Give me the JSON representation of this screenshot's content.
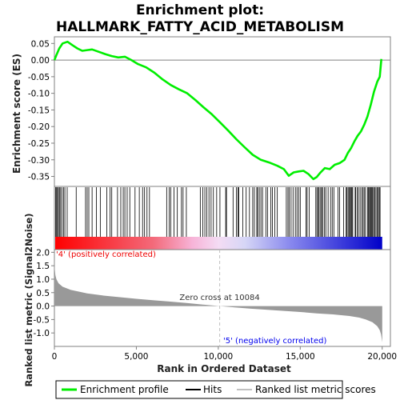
{
  "title_line1": "Enrichment plot:",
  "title_line2": "HALLMARK_FATTY_ACID_METABOLISM",
  "colors": {
    "es_line": "#00ee00",
    "hits": "#000000",
    "ranked_fill": "#999999",
    "positive_label": "#ee0000",
    "negative_label": "#0000ee",
    "zero_cross_line": "#c0c0c0"
  },
  "chart_data": [
    {
      "type": "line",
      "name": "enrichment-score-plot",
      "ylabel": "Enrichment score (ES)",
      "xlim": [
        0,
        20500
      ],
      "ylim": [
        -0.38,
        0.07
      ],
      "yticks": [
        0.05,
        0.0,
        -0.05,
        -0.1,
        -0.15,
        -0.2,
        -0.25,
        -0.3,
        -0.35
      ],
      "ytick_labels": [
        "0.05",
        "0.00",
        "-0.05",
        "-0.10",
        "-0.15",
        "-0.20",
        "-0.25",
        "-0.30",
        "-0.35"
      ],
      "series": [
        {
          "name": "Enrichment profile",
          "x": [
            0,
            120,
            300,
            500,
            800,
            1100,
            1400,
            1700,
            2000,
            2300,
            2700,
            3100,
            3500,
            3900,
            4300,
            4700,
            5100,
            5600,
            6100,
            6600,
            7100,
            7600,
            8100,
            8600,
            9100,
            9600,
            10100,
            10600,
            11100,
            11600,
            12100,
            12600,
            13100,
            13600,
            14000,
            14300,
            14600,
            14900,
            15200,
            15500,
            15800,
            16000,
            16200,
            16500,
            16800,
            17100,
            17400,
            17700,
            17900,
            18100,
            18300,
            18500,
            18700,
            18900,
            19100,
            19300,
            19500,
            19700,
            19850,
            19950
          ],
          "y": [
            0.0,
            0.015,
            0.035,
            0.05,
            0.055,
            0.045,
            0.035,
            0.028,
            0.03,
            0.032,
            0.025,
            0.018,
            0.012,
            0.008,
            0.01,
            0.0,
            -0.012,
            -0.022,
            -0.038,
            -0.058,
            -0.075,
            -0.088,
            -0.1,
            -0.12,
            -0.142,
            -0.163,
            -0.187,
            -0.212,
            -0.238,
            -0.262,
            -0.285,
            -0.3,
            -0.308,
            -0.318,
            -0.328,
            -0.348,
            -0.338,
            -0.335,
            -0.333,
            -0.343,
            -0.358,
            -0.352,
            -0.34,
            -0.325,
            -0.328,
            -0.315,
            -0.31,
            -0.3,
            -0.28,
            -0.265,
            -0.245,
            -0.228,
            -0.215,
            -0.195,
            -0.17,
            -0.135,
            -0.095,
            -0.065,
            -0.05,
            0.003
          ]
        }
      ]
    },
    {
      "type": "heatmap",
      "name": "hits-strip",
      "xlim": [
        0,
        20500
      ],
      "hit_positions": [
        70,
        130,
        190,
        240,
        310,
        380,
        460,
        560,
        640,
        780,
        1330,
        1900,
        2000,
        2100,
        2300,
        2560,
        2800,
        3200,
        3400,
        3500,
        3850,
        4050,
        4200,
        4300,
        4440,
        4600,
        4920,
        5180,
        5380,
        5500,
        5650,
        5800,
        6850,
        7000,
        7100,
        7300,
        7500,
        7750,
        7850,
        8050,
        8900,
        9050,
        9180,
        9300,
        9430,
        9560,
        9700,
        9900,
        10100,
        10450,
        10500,
        10900,
        11100,
        11200,
        11250,
        11500,
        11700,
        11900,
        12100,
        12200,
        12350,
        12400,
        12500,
        12600,
        12700,
        12900,
        13000,
        13200,
        13300,
        13450,
        13600,
        14150,
        14250,
        14320,
        14440,
        14560,
        14700,
        14800,
        14900,
        15000,
        15350,
        15420,
        15550,
        15950,
        16020,
        16100,
        16150,
        16250,
        16300,
        16380,
        16480,
        16560,
        16700,
        16850,
        16950,
        17050,
        17300,
        17400,
        17650,
        17800,
        17850,
        17920,
        17980,
        18050,
        18100,
        18150,
        18200,
        18350,
        18380,
        18470,
        18550,
        18650,
        18750,
        18830,
        18900,
        18980,
        19100,
        19160,
        19220,
        19270,
        19320,
        19370,
        19420,
        19480,
        19550,
        19620,
        19700,
        19760,
        19820,
        19870
      ]
    },
    {
      "type": "area",
      "name": "ranked-list-metric",
      "ylabel": "Ranked list metric (Signal2Noise)",
      "xlabel": "Rank in Ordered Dataset",
      "xlim": [
        0,
        20500
      ],
      "ylim": [
        -1.5,
        2.1
      ],
      "xticks": [
        0,
        5000,
        10000,
        15000,
        20000
      ],
      "xtick_labels": [
        "0",
        "5,000",
        "10,000",
        "15,000",
        "20,000"
      ],
      "yticks": [
        2.0,
        1.5,
        1.0,
        0.5,
        0.0,
        -0.5,
        -1.0
      ],
      "ytick_labels": [
        "2.0",
        "1.5",
        "1.0",
        "0.5",
        "0.0",
        "-0.5",
        "-1.0"
      ],
      "x": [
        0,
        20,
        60,
        120,
        250,
        500,
        1000,
        2000,
        3000,
        4000,
        5000,
        6000,
        7000,
        8000,
        9000,
        10084,
        11000,
        12000,
        13000,
        14000,
        15000,
        16000,
        17000,
        18000,
        18600,
        19000,
        19400,
        19700,
        19850,
        19930,
        19970,
        20000
      ],
      "values": [
        2.0,
        1.4,
        1.15,
        1.0,
        0.85,
        0.72,
        0.6,
        0.47,
        0.39,
        0.33,
        0.27,
        0.22,
        0.17,
        0.12,
        0.06,
        0.0,
        -0.05,
        -0.1,
        -0.14,
        -0.18,
        -0.22,
        -0.27,
        -0.31,
        -0.37,
        -0.43,
        -0.5,
        -0.6,
        -0.75,
        -0.9,
        -1.05,
        -1.2,
        -1.35
      ],
      "zero_cross_at": 10084,
      "zero_cross_label": "Zero cross at 10084",
      "positive_label": "'4' (positively correlated)",
      "negative_label": "'5' (negatively correlated)"
    }
  ],
  "legend": {
    "items": [
      {
        "label": "Enrichment profile"
      },
      {
        "label": "Hits"
      },
      {
        "label": "Ranked list metric scores"
      }
    ]
  }
}
